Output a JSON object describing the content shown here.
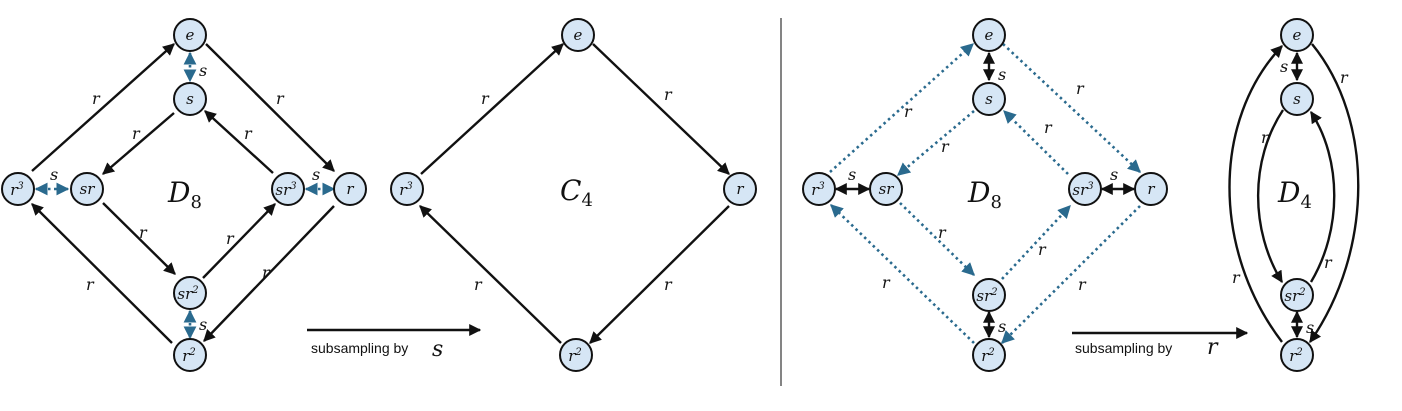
{
  "colors": {
    "node_fill": "#d6e6f5",
    "black": "#111111",
    "teal": "#2a6a8e"
  },
  "panels": {
    "d8_left": {
      "group_label": "D",
      "group_sub": "8"
    },
    "c4": {
      "group_label": "C",
      "group_sub": "4"
    },
    "d8_right": {
      "group_label": "D",
      "group_sub": "8"
    },
    "d4": {
      "group_label": "D",
      "group_sub": "4"
    }
  },
  "nodes": {
    "e": "e",
    "s": "s",
    "sr": "sr",
    "sr3_base": "sr",
    "sr3_exp": "3",
    "r": "r",
    "r3_base": "r",
    "r3_exp": "3",
    "r2_base": "r",
    "r2_exp": "2",
    "sr2_base": "sr",
    "sr2_exp": "2"
  },
  "edge_labels": {
    "r": "r",
    "s": "s"
  },
  "captions": {
    "left_text": "subsampling by",
    "left_var": "s",
    "right_text": "subsampling by",
    "right_var": "r"
  }
}
